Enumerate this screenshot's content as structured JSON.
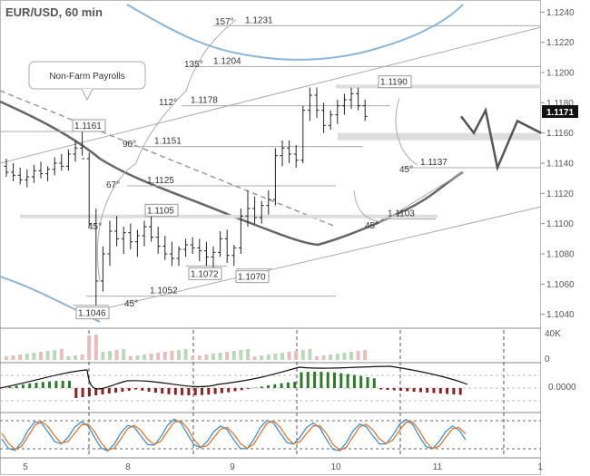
{
  "chart_data": {
    "type": "candlestick",
    "title": "EUR/USD, 60 min",
    "current_price": "1.1171",
    "y_ticks": [
      "1.1240",
      "1.1220",
      "1.1200",
      "1.1180",
      "1.1160",
      "1.1140",
      "1.1120",
      "1.1100",
      "1.1080",
      "1.1060",
      "1.1040"
    ],
    "ylim": [
      1.1035,
      1.1245
    ],
    "x_ticks": [
      "5",
      "8",
      "9",
      "10",
      "11",
      "1"
    ],
    "xlim": [
      0,
      100
    ],
    "callout": "Non-Farm Payrolls",
    "price_levels": [
      {
        "label": "1.1231",
        "value": 1.1231
      },
      {
        "label": "1.1204",
        "value": 1.1204
      },
      {
        "label": "1.1190",
        "value": 1.119
      },
      {
        "label": "1.1178",
        "value": 1.1178
      },
      {
        "label": "1.1161",
        "value": 1.1161
      },
      {
        "label": "1.1151",
        "value": 1.1151
      },
      {
        "label": "1.1137",
        "value": 1.1137
      },
      {
        "label": "1.1125",
        "value": 1.1125
      },
      {
        "label": "1.1105",
        "value": 1.1105
      },
      {
        "label": "1.1103",
        "value": 1.1103
      },
      {
        "label": "1.1072",
        "value": 1.1072
      },
      {
        "label": "1.1070",
        "value": 1.107
      },
      {
        "label": "1.1052",
        "value": 1.1052
      },
      {
        "label": "1.1046",
        "value": 1.1046
      }
    ],
    "angles": [
      "157°",
      "135°",
      "112°",
      "90°",
      "67°",
      "45°",
      "45°",
      "45°",
      "45°"
    ],
    "volume_label": "40K",
    "volume_zero": "0",
    "macd_zero": "0.0000",
    "candles": [
      [
        1.1138,
        1.1143,
        1.1131,
        1.1134
      ],
      [
        1.1134,
        1.114,
        1.1128,
        1.1132
      ],
      [
        1.1132,
        1.1137,
        1.1126,
        1.1129
      ],
      [
        1.1129,
        1.1136,
        1.1124,
        1.1131
      ],
      [
        1.1131,
        1.1139,
        1.1127,
        1.1135
      ],
      [
        1.1135,
        1.1141,
        1.113,
        1.1133
      ],
      [
        1.1133,
        1.1138,
        1.1128,
        1.1136
      ],
      [
        1.1136,
        1.1144,
        1.1132,
        1.114
      ],
      [
        1.114,
        1.1146,
        1.1135,
        1.1138
      ],
      [
        1.1138,
        1.1149,
        1.1135,
        1.1146
      ],
      [
        1.1146,
        1.1155,
        1.1141,
        1.115
      ],
      [
        1.115,
        1.1161,
        1.1145,
        1.1143
      ],
      [
        1.1143,
        1.1147,
        1.1098,
        1.11
      ],
      [
        1.11,
        1.111,
        1.1046,
        1.1062
      ],
      [
        1.1062,
        1.1085,
        1.1055,
        1.108
      ],
      [
        1.108,
        1.1102,
        1.1072,
        1.1095
      ],
      [
        1.1095,
        1.1105,
        1.1085,
        1.109
      ],
      [
        1.109,
        1.1098,
        1.108,
        1.1094
      ],
      [
        1.1094,
        1.11,
        1.1083,
        1.1088
      ],
      [
        1.1088,
        1.1096,
        1.1078,
        1.1092
      ],
      [
        1.1092,
        1.1102,
        1.1085,
        1.1098
      ],
      [
        1.1098,
        1.1105,
        1.1088,
        1.1091
      ],
      [
        1.1091,
        1.1098,
        1.108,
        1.1085
      ],
      [
        1.1085,
        1.1092,
        1.1076,
        1.108
      ],
      [
        1.108,
        1.1088,
        1.1072,
        1.1077
      ],
      [
        1.1077,
        1.1085,
        1.1072,
        1.1083
      ],
      [
        1.1083,
        1.109,
        1.1078,
        1.1086
      ],
      [
        1.1086,
        1.1091,
        1.108,
        1.1084
      ],
      [
        1.1084,
        1.109,
        1.1075,
        1.1082
      ],
      [
        1.1082,
        1.1088,
        1.1072,
        1.1078
      ],
      [
        1.1078,
        1.1085,
        1.107,
        1.1081
      ],
      [
        1.1081,
        1.1095,
        1.1078,
        1.109
      ],
      [
        1.109,
        1.1096,
        1.1074,
        1.1079
      ],
      [
        1.1079,
        1.1086,
        1.1072,
        1.1084
      ],
      [
        1.1084,
        1.111,
        1.108,
        1.1105
      ],
      [
        1.1105,
        1.1122,
        1.1098,
        1.111
      ],
      [
        1.111,
        1.1118,
        1.11,
        1.1104
      ],
      [
        1.1104,
        1.1115,
        1.11,
        1.1112
      ],
      [
        1.1112,
        1.1122,
        1.1106,
        1.1116
      ],
      [
        1.1116,
        1.115,
        1.1112,
        1.1145
      ],
      [
        1.1145,
        1.1155,
        1.1138,
        1.115
      ],
      [
        1.115,
        1.1155,
        1.114,
        1.1146
      ],
      [
        1.1146,
        1.1152,
        1.1137,
        1.1142
      ],
      [
        1.1142,
        1.1178,
        1.114,
        1.1175
      ],
      [
        1.1175,
        1.119,
        1.1168,
        1.1185
      ],
      [
        1.1185,
        1.119,
        1.117,
        1.1175
      ],
      [
        1.1175,
        1.118,
        1.116,
        1.1165
      ],
      [
        1.1165,
        1.1175,
        1.1162,
        1.1172
      ],
      [
        1.1172,
        1.1182,
        1.1166,
        1.1178
      ],
      [
        1.1178,
        1.1186,
        1.1172,
        1.1182
      ],
      [
        1.1182,
        1.119,
        1.1176,
        1.1186
      ],
      [
        1.1186,
        1.119,
        1.1175,
        1.1178
      ],
      [
        1.1178,
        1.1182,
        1.1168,
        1.1171
      ]
    ],
    "projection": [
      1.1171,
      1.116,
      1.1175,
      1.1137,
      1.1168,
      1.116
    ]
  }
}
